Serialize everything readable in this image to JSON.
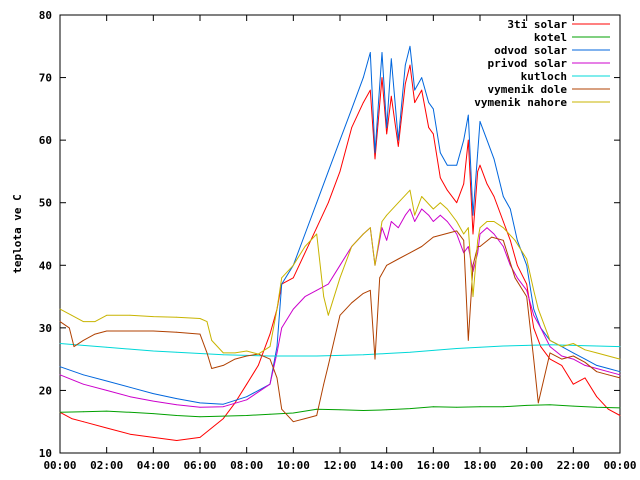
{
  "chart_data": {
    "type": "line",
    "ylabel": "teplota ve C",
    "xlabel": "",
    "title": "",
    "ylim": [
      10,
      80
    ],
    "xlim": [
      0,
      24
    ],
    "grid": false,
    "legend_position": "top-right",
    "x_ticks": [
      {
        "value": 0,
        "label": "00:00"
      },
      {
        "value": 2,
        "label": "02:00"
      },
      {
        "value": 4,
        "label": "04:00"
      },
      {
        "value": 6,
        "label": "06:00"
      },
      {
        "value": 8,
        "label": "08:00"
      },
      {
        "value": 10,
        "label": "10:00"
      },
      {
        "value": 12,
        "label": "12:00"
      },
      {
        "value": 14,
        "label": "14:00"
      },
      {
        "value": 16,
        "label": "16:00"
      },
      {
        "value": 18,
        "label": "18:00"
      },
      {
        "value": 20,
        "label": "20:00"
      },
      {
        "value": 22,
        "label": "22:00"
      },
      {
        "value": 24,
        "label": "00:00"
      }
    ],
    "y_ticks": [
      {
        "value": 10,
        "label": "10"
      },
      {
        "value": 20,
        "label": "20"
      },
      {
        "value": 30,
        "label": "30"
      },
      {
        "value": 40,
        "label": "40"
      },
      {
        "value": 50,
        "label": "50"
      },
      {
        "value": 60,
        "label": "60"
      },
      {
        "value": 70,
        "label": "70"
      },
      {
        "value": 80,
        "label": "80"
      }
    ],
    "series": [
      {
        "name": "3ti solar",
        "color": "#ff0000",
        "x": [
          0,
          0.5,
          1,
          2,
          3,
          4,
          5,
          6,
          7,
          7.5,
          8,
          8.5,
          9,
          9.3,
          9.5,
          10,
          10.5,
          11,
          11.5,
          12,
          12.5,
          13,
          13.3,
          13.5,
          13.8,
          14,
          14.2,
          14.5,
          14.8,
          15,
          15.2,
          15.5,
          15.8,
          16,
          16.3,
          16.6,
          17,
          17.3,
          17.5,
          17.7,
          17.9,
          18,
          18.3,
          18.6,
          19,
          19.3,
          19.6,
          20,
          20.3,
          20.6,
          21,
          21.5,
          22,
          22.5,
          23,
          23.5,
          24
        ],
        "y": [
          16.5,
          15.5,
          15,
          14,
          13,
          12.5,
          12,
          12.5,
          15.5,
          18,
          21,
          24,
          29,
          33,
          37,
          38,
          42,
          46,
          50,
          55,
          62,
          66,
          68,
          57,
          70,
          61,
          67,
          59,
          69,
          72,
          66,
          68,
          62,
          61,
          54,
          52,
          50,
          53,
          60,
          45,
          55,
          56,
          53,
          51,
          47,
          44,
          40,
          37,
          30,
          27,
          25,
          24,
          21,
          22,
          19,
          17,
          16
        ]
      },
      {
        "name": "kotel",
        "color": "#00a000",
        "x": [
          0,
          1,
          2,
          3,
          4,
          5,
          6,
          7,
          8,
          9,
          10,
          11,
          12,
          13,
          14,
          15,
          16,
          17,
          18,
          19,
          20,
          21,
          22,
          23,
          24
        ],
        "y": [
          16.5,
          16.6,
          16.7,
          16.5,
          16.3,
          16,
          15.8,
          15.9,
          16,
          16.2,
          16.4,
          17,
          16.9,
          16.8,
          16.9,
          17.1,
          17.4,
          17.3,
          17.4,
          17.4,
          17.6,
          17.7,
          17.5,
          17.3,
          17.2
        ]
      },
      {
        "name": "odvod solar",
        "color": "#0066dd",
        "x": [
          0,
          1,
          2,
          3,
          4,
          5,
          6,
          7,
          8,
          9,
          9.3,
          9.5,
          10,
          10.5,
          11,
          11.5,
          12,
          12.5,
          13,
          13.3,
          13.5,
          13.8,
          14,
          14.2,
          14.5,
          14.8,
          15,
          15.2,
          15.5,
          15.8,
          16,
          16.3,
          16.6,
          17,
          17.3,
          17.5,
          17.7,
          17.9,
          18,
          18.3,
          18.6,
          19,
          19.3,
          19.6,
          20,
          20.3,
          20.6,
          21,
          21.5,
          22,
          22.5,
          23,
          23.5,
          24
        ],
        "y": [
          23.8,
          22.5,
          21.5,
          20.5,
          19.5,
          18.7,
          18,
          17.8,
          19,
          21,
          27,
          37,
          40,
          45,
          50,
          55,
          60,
          65,
          70,
          74,
          58,
          74,
          62,
          73,
          60,
          72,
          75,
          68,
          70,
          66,
          65,
          58,
          56,
          56,
          60,
          64,
          48,
          58,
          63,
          60,
          57,
          51,
          49,
          44,
          40,
          33,
          30,
          28,
          27,
          26,
          25,
          24,
          23.5,
          23
        ]
      },
      {
        "name": "privod solar",
        "color": "#cc00cc",
        "x": [
          0,
          1,
          2,
          3,
          4,
          5,
          6,
          7,
          8,
          9,
          9.3,
          9.5,
          10,
          10.5,
          11,
          11.5,
          12,
          12.5,
          13,
          13.3,
          13.5,
          13.8,
          14,
          14.2,
          14.5,
          14.8,
          15,
          15.2,
          15.5,
          15.8,
          16,
          16.3,
          16.6,
          17,
          17.3,
          17.5,
          17.7,
          17.9,
          18,
          18.3,
          18.6,
          19,
          19.3,
          19.6,
          20,
          20.3,
          20.6,
          21,
          21.5,
          22,
          22.5,
          23,
          23.5,
          24
        ],
        "y": [
          22.5,
          21,
          20,
          19,
          18.3,
          17.7,
          17.3,
          17.4,
          18.5,
          21,
          26,
          30,
          33,
          35,
          36,
          37,
          40,
          43,
          45,
          46,
          40,
          46,
          44,
          47,
          46,
          48,
          49,
          47,
          49,
          48,
          47,
          48,
          47,
          45,
          42,
          43,
          39,
          42,
          45,
          46,
          45,
          43,
          40,
          38,
          36,
          32,
          30,
          27,
          25.5,
          25,
          24,
          23.5,
          23,
          22.5
        ]
      },
      {
        "name": "kutloch",
        "color": "#00d8d8",
        "x": [
          0,
          1,
          2,
          3,
          4,
          5,
          6,
          7,
          8,
          9,
          10,
          11,
          12,
          13,
          14,
          15,
          16,
          17,
          18,
          19,
          20,
          21,
          22,
          23,
          24
        ],
        "y": [
          27.5,
          27.2,
          26.9,
          26.6,
          26.3,
          26.1,
          25.9,
          25.7,
          25.6,
          25.5,
          25.5,
          25.5,
          25.6,
          25.7,
          25.9,
          26.1,
          26.4,
          26.7,
          26.9,
          27.1,
          27.2,
          27.3,
          27.2,
          27.1,
          27
        ]
      },
      {
        "name": "vymenik dole",
        "color": "#b04000",
        "x": [
          0,
          0.4,
          0.6,
          1,
          1.5,
          2,
          3,
          4,
          5,
          6,
          6.3,
          6.5,
          7,
          7.5,
          8,
          8.5,
          9,
          9.3,
          9.5,
          10,
          10.5,
          11,
          11.3,
          11.5,
          12,
          12.5,
          13,
          13.3,
          13.5,
          13.7,
          14,
          14.5,
          15,
          15.5,
          16,
          16.5,
          17,
          17.3,
          17.5,
          17.7,
          17.9,
          18,
          18.5,
          19,
          19.5,
          20,
          20.3,
          20.5,
          21,
          21.5,
          22,
          22.5,
          23,
          23.5,
          24
        ],
        "y": [
          31,
          30,
          27,
          28,
          29,
          29.5,
          29.5,
          29.5,
          29.3,
          29,
          26,
          23.5,
          24,
          25,
          25.5,
          25.8,
          25,
          22,
          17,
          15,
          15.5,
          16,
          21,
          24,
          32,
          34,
          35.5,
          36,
          25,
          38,
          40,
          41,
          42,
          43,
          44.5,
          45,
          45.5,
          44,
          28,
          40,
          43,
          43,
          44.5,
          44,
          38,
          35,
          25,
          18,
          26,
          25,
          25.5,
          24.5,
          23,
          22.5,
          22
        ]
      },
      {
        "name": "vymenik nahore",
        "color": "#c8b400",
        "x": [
          0,
          0.5,
          1,
          1.5,
          2,
          3,
          4,
          5,
          6,
          6.3,
          6.5,
          7,
          7.5,
          8,
          8.5,
          9,
          9.3,
          9.5,
          10,
          10.5,
          11,
          11.3,
          11.5,
          12,
          12.5,
          13,
          13.3,
          13.5,
          13.8,
          14,
          14.5,
          15,
          15.2,
          15.5,
          16,
          16.3,
          16.6,
          17,
          17.3,
          17.5,
          17.7,
          17.9,
          18,
          18.3,
          18.6,
          19,
          19.5,
          20,
          20.3,
          20.5,
          21,
          21.5,
          22,
          22.5,
          23,
          23.5,
          24
        ],
        "y": [
          33,
          32,
          31,
          31,
          32,
          32,
          31.8,
          31.7,
          31.5,
          31,
          28,
          26,
          26,
          26.3,
          25.8,
          27,
          33,
          38,
          40,
          43,
          45,
          35,
          32,
          38,
          43,
          45,
          46,
          40,
          47,
          48,
          50,
          52,
          48,
          51,
          49,
          50,
          49,
          47,
          45,
          46,
          35,
          44,
          46,
          47,
          47,
          46,
          44,
          41,
          36,
          33,
          28,
          27,
          27.5,
          26.5,
          26,
          25.5,
          25
        ]
      }
    ]
  }
}
